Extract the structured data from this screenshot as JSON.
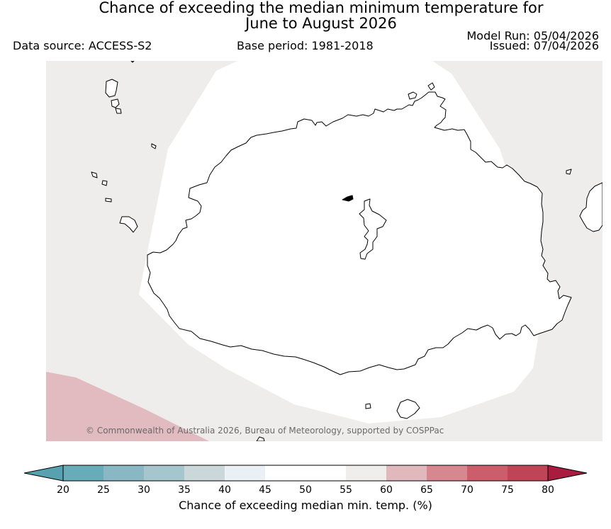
{
  "title": {
    "line1": "Chance of exceeding the median minimum temperature for",
    "line2": "June to August 2026"
  },
  "meta": {
    "data_source": "Data source: ACCESS-S2",
    "base_period": "Base period: 1981-2018",
    "model_run": "Model Run: 05/04/2026",
    "issued": "Issued: 07/04/2026"
  },
  "map": {
    "land_color": "#ffffff",
    "background_category_color": "#eeedeb",
    "warm_category_color": "#e1bbbf",
    "coastline_color": "#000000"
  },
  "copyright": "© Commonwealth of Australia 2026, Bureau of Meteorology, supported by COSPPac",
  "legend": {
    "label": "Chance of exceeding median min. temp. (%)",
    "ticks": [
      "20",
      "25",
      "30",
      "35",
      "40",
      "45",
      "50",
      "55",
      "60",
      "65",
      "70",
      "75",
      "80"
    ],
    "under_color": "#57a1b1",
    "over_color": "#a91c3f",
    "bin_colors": [
      "#68abb9",
      "#89b8c4",
      "#a5c6cc",
      "#cad8da",
      "#eaf0f3",
      "#ffffff",
      "#ffffff",
      "#efeeec",
      "#e1b9bd",
      "#d6878f",
      "#cc5e6c",
      "#bf4556"
    ]
  }
}
